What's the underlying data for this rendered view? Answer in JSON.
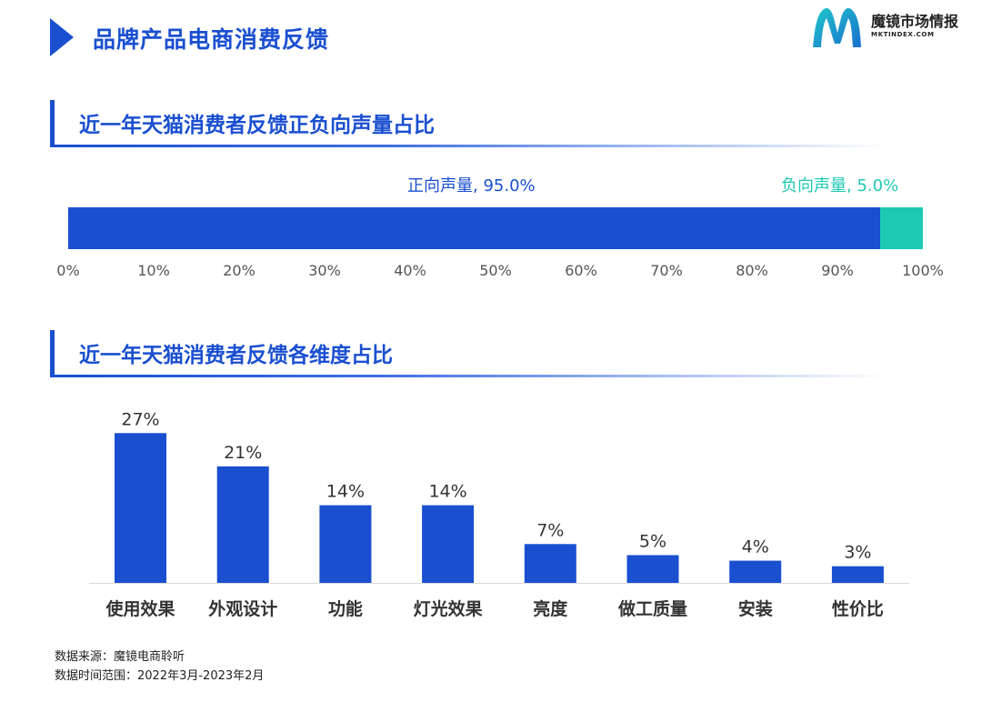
{
  "header": {
    "title": "品牌产品电商消费反馈",
    "logo_name": "魔镜市场情报",
    "logo_url": "MKTINDEX.COM"
  },
  "colors": {
    "primary": "#1a4fd0",
    "negative": "#1ec9b4"
  },
  "section1": {
    "title": "近一年天猫消费者反馈正负向声量占比"
  },
  "section2": {
    "title": "近一年天猫消费者反馈各维度占比"
  },
  "chart_data": [
    {
      "type": "bar",
      "orientation": "horizontal-stacked",
      "xlim": [
        0,
        100
      ],
      "ticks": [
        "0%",
        "10%",
        "20%",
        "30%",
        "40%",
        "50%",
        "60%",
        "70%",
        "80%",
        "90%",
        "100%"
      ],
      "series": [
        {
          "name": "正向声量",
          "value": 95.0,
          "label": "正向声量, 95.0%",
          "color": "#1a4fd0"
        },
        {
          "name": "负向声量",
          "value": 5.0,
          "label": "负向声量, 5.0%",
          "color": "#1ec9b4"
        }
      ]
    },
    {
      "type": "bar",
      "categories": [
        "使用效果",
        "外观设计",
        "功能",
        "灯光效果",
        "亮度",
        "做工质量",
        "安装",
        "性价比"
      ],
      "values": [
        27,
        21,
        14,
        14,
        7,
        5,
        4,
        3
      ],
      "value_labels": [
        "27%",
        "21%",
        "14%",
        "14%",
        "7%",
        "5%",
        "4%",
        "3%"
      ],
      "color": "#1a4fd0",
      "grid": false
    }
  ],
  "footer": {
    "source": "数据来源：魔镜电商聆听",
    "range": "数据时间范围：2022年3月-2023年2月"
  }
}
